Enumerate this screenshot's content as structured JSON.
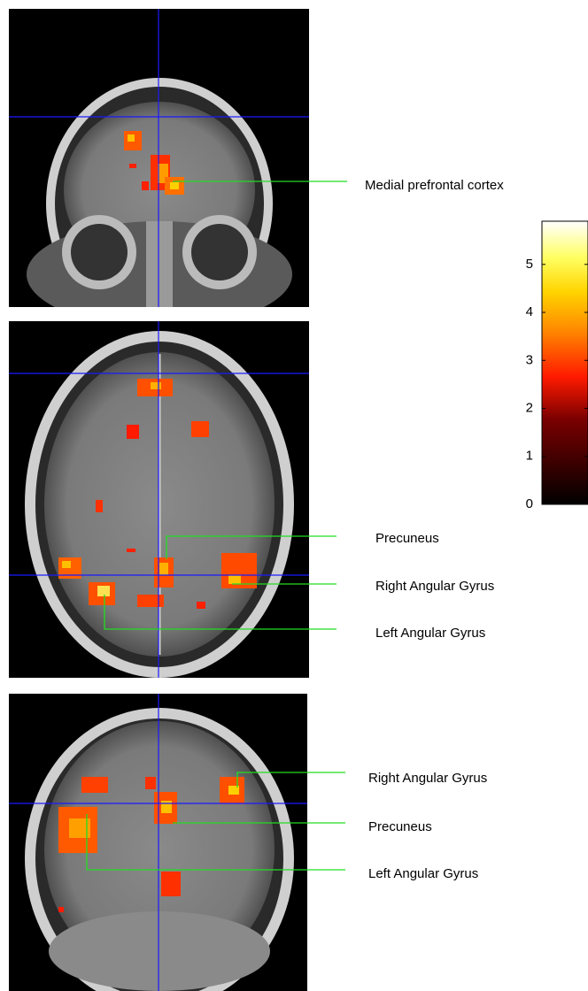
{
  "figure": {
    "panels": [
      {
        "labels": [
          "Medial prefrontal cortex"
        ]
      },
      {
        "labels": [
          "Precuneus",
          "Right Angular Gyrus",
          "Left Angular Gyrus"
        ]
      },
      {
        "labels": [
          "Right Angular Gyrus",
          "Precuneus",
          "Left Angular Gyrus"
        ]
      }
    ],
    "colorbar": {
      "lim": [
        0,
        5.9
      ],
      "ticks": [
        0,
        1,
        2,
        3,
        4,
        5
      ]
    }
  }
}
